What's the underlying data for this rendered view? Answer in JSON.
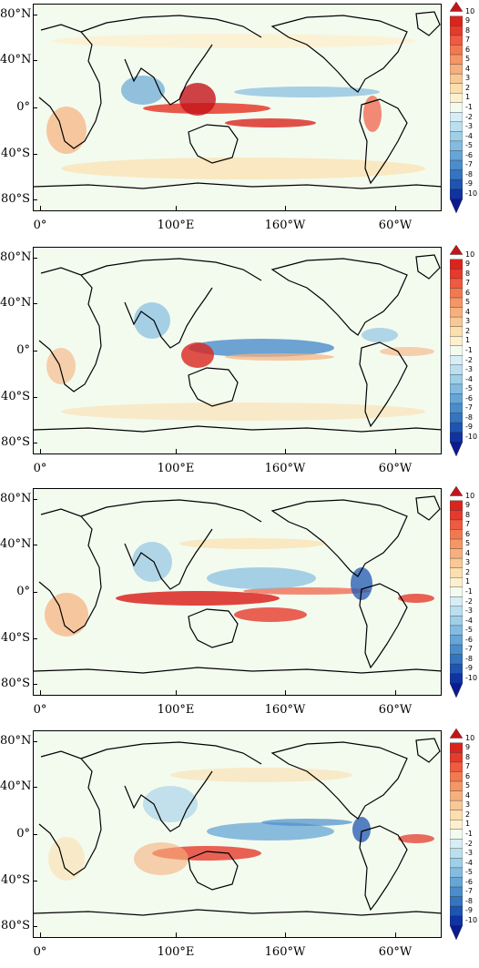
{
  "panels": [
    {
      "id": "panel-1"
    },
    {
      "id": "panel-2"
    },
    {
      "id": "panel-3"
    },
    {
      "id": "panel-4"
    }
  ],
  "axes": {
    "y_ticks": [
      "80°N",
      "40°N",
      "0°",
      "40°S",
      "80°S"
    ],
    "x_ticks": [
      "0°",
      "100°E",
      "160°W",
      "60°W"
    ]
  },
  "colorbar": {
    "labels": [
      "10",
      "9",
      "8",
      "7",
      "6",
      "5",
      "4",
      "3",
      "2",
      "1",
      "-1",
      "-2",
      "-3",
      "-4",
      "-5",
      "-6",
      "-7",
      "-8",
      "-9",
      "-10"
    ],
    "colors": [
      "#c4141a",
      "#d9251e",
      "#e53b2c",
      "#ef5a40",
      "#f2794f",
      "#f59665",
      "#f6b07d",
      "#f8c896",
      "#fbdfae",
      "#fdf0cf",
      "#f3fbef",
      "#d7eef6",
      "#bcdff0",
      "#a0cfe8",
      "#83bce0",
      "#66a6d6",
      "#4a8dca",
      "#3574be",
      "#1f55b0",
      "#0f33a0",
      "#0a1a8f"
    ]
  }
}
